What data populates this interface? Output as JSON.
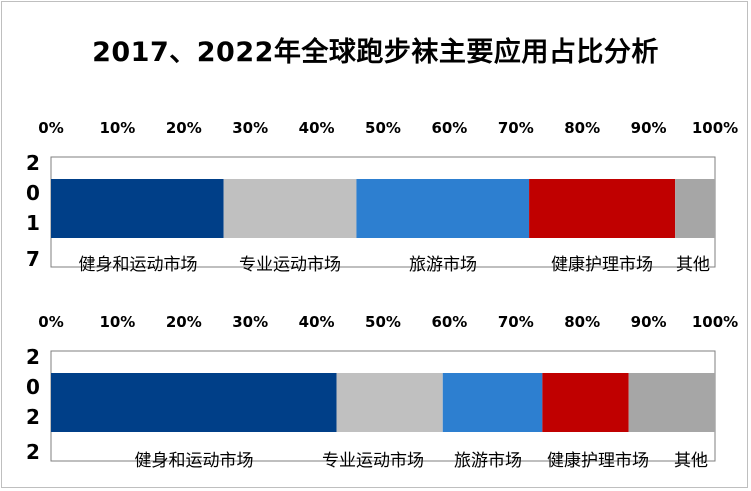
{
  "chart_data": {
    "type": "bar",
    "orientation": "horizontal",
    "stacked": "percent",
    "title": "2017、2022年全球跑步袜主要应用占比分析",
    "xlim": [
      0,
      100
    ],
    "tick_labels": [
      "0%",
      "10%",
      "20%",
      "30%",
      "40%",
      "50%",
      "60%",
      "70%",
      "80%",
      "90%",
      "100%"
    ],
    "categories": [
      "2017",
      "2022"
    ],
    "series": [
      {
        "name": "健身和运动市场",
        "values": [
          26,
          43
        ],
        "color": "#003f88"
      },
      {
        "name": "专业运动市场",
        "values": [
          20,
          16
        ],
        "color": "#c0c0c0"
      },
      {
        "name": "旅游市场",
        "values": [
          26,
          15
        ],
        "color": "#2d7fd0"
      },
      {
        "name": "健康护理市场",
        "values": [
          22,
          13
        ],
        "color": "#c00000"
      },
      {
        "name": "其他",
        "values": [
          6,
          13
        ],
        "color": "#a6a6a6"
      }
    ],
    "grid": false,
    "legend": "none"
  }
}
